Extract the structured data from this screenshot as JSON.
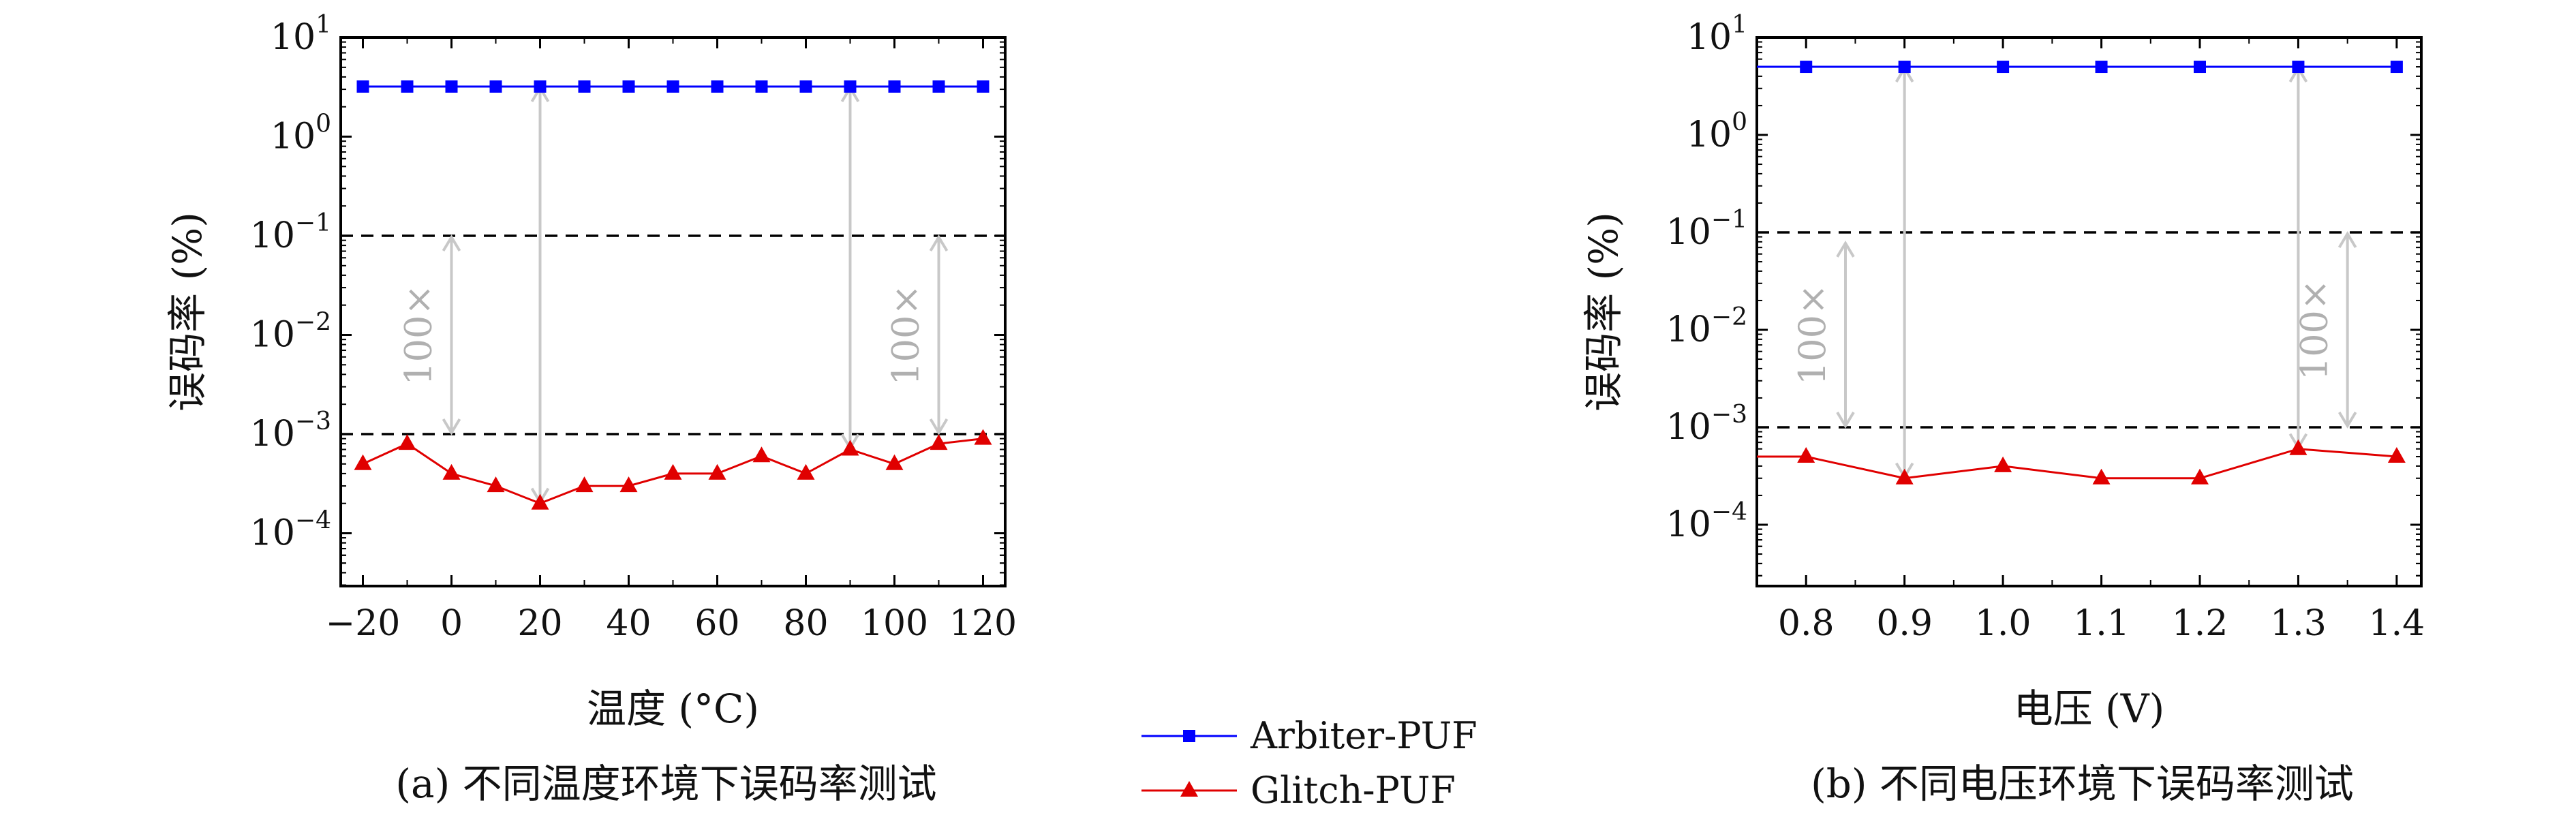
{
  "chart_data": [
    {
      "type": "line",
      "panel": "a",
      "caption": "(a) 不同温度环境下误码率测试",
      "xlabel": "温度 (°C)",
      "ylabel": "误码率 (%)",
      "yscale": "log",
      "xlim": [
        -25,
        125
      ],
      "ylim": [
        3e-05,
        10
      ],
      "xticks": [
        -20,
        0,
        20,
        40,
        60,
        80,
        100,
        120
      ],
      "xtick_labels": [
        "−20",
        "0",
        "20",
        "40",
        "60",
        "80",
        "100",
        "120"
      ],
      "yticks": [
        10,
        1,
        0.1,
        0.01,
        0.001,
        0.0001
      ],
      "ytick_labels": [
        {
          "base": "10",
          "exp": "1"
        },
        {
          "base": "10",
          "exp": "0"
        },
        {
          "base": "10",
          "exp": "−1"
        },
        {
          "base": "10",
          "exp": "−2"
        },
        {
          "base": "10",
          "exp": "−3"
        },
        {
          "base": "10",
          "exp": "−4"
        }
      ],
      "x": [
        -20,
        -10,
        0,
        10,
        20,
        30,
        40,
        50,
        60,
        70,
        80,
        90,
        100,
        110,
        120
      ],
      "series": [
        {
          "name": "Arbiter-PUF",
          "color": "#0000ff",
          "marker": "square",
          "values": [
            3.2,
            3.2,
            3.2,
            3.2,
            3.2,
            3.2,
            3.2,
            3.2,
            3.2,
            3.2,
            3.2,
            3.2,
            3.2,
            3.2,
            3.2
          ]
        },
        {
          "name": "Glitch-PUF",
          "color": "#e00000",
          "marker": "triangle",
          "values": [
            0.0005,
            0.0008,
            0.0004,
            0.0003,
            0.0002,
            0.0003,
            0.0003,
            0.0004,
            0.0004,
            0.0006,
            0.0004,
            0.0007,
            0.0005,
            0.0008,
            0.0009
          ]
        }
      ],
      "hlines": [
        0.1,
        0.001
      ],
      "arrows": [
        {
          "x": 0,
          "from": 0.1,
          "to": 0.001,
          "label": "100×"
        },
        {
          "x": 20,
          "from": 3.2,
          "to": 0.0002,
          "label": ""
        },
        {
          "x": 90,
          "from": 3.2,
          "to": 0.0007,
          "label": ""
        },
        {
          "x": 110,
          "from": 0.1,
          "to": 0.001,
          "label": "100×"
        }
      ]
    },
    {
      "type": "line",
      "panel": "b",
      "caption": "(b) 不同电压环境下误码率测试",
      "xlabel": "电压 (V)",
      "ylabel": "误码率 (%)",
      "yscale": "log",
      "xlim": [
        0.75,
        1.425
      ],
      "ylim": [
        2e-05,
        10
      ],
      "xticks": [
        0.8,
        0.9,
        1.0,
        1.1,
        1.2,
        1.3,
        1.4
      ],
      "xtick_labels": [
        "0.8",
        "0.9",
        "1.0",
        "1.1",
        "1.2",
        "1.3",
        "1.4"
      ],
      "yticks": [
        10,
        1,
        0.1,
        0.01,
        0.001,
        0.0001
      ],
      "ytick_labels": [
        {
          "base": "10",
          "exp": "1"
        },
        {
          "base": "10",
          "exp": "0"
        },
        {
          "base": "10",
          "exp": "−1"
        },
        {
          "base": "10",
          "exp": "−2"
        },
        {
          "base": "10",
          "exp": "−3"
        },
        {
          "base": "10",
          "exp": "−4"
        }
      ],
      "x": [
        0.75,
        0.8,
        0.9,
        1.0,
        1.1,
        1.2,
        1.3,
        1.4
      ],
      "series": [
        {
          "name": "Arbiter-PUF",
          "color": "#0000ff",
          "marker": "square",
          "values": [
            5,
            5,
            5,
            5,
            5,
            5,
            5,
            5
          ],
          "marker_from": 1
        },
        {
          "name": "Glitch-PUF",
          "color": "#e00000",
          "marker": "triangle",
          "values": [
            0.0005,
            0.0005,
            0.0003,
            0.0004,
            0.0003,
            0.0003,
            0.0006,
            0.0005
          ],
          "marker_from": 1
        }
      ],
      "hlines": [
        0.1,
        0.001
      ],
      "arrows": [
        {
          "x": 0.84,
          "from": 0.08,
          "to": 0.001,
          "label": "100×"
        },
        {
          "x": 0.9,
          "from": 5,
          "to": 0.0003,
          "label": ""
        },
        {
          "x": 1.3,
          "from": 5,
          "to": 0.0006,
          "label": ""
        },
        {
          "x": 1.35,
          "from": 0.1,
          "to": 0.001,
          "label": "100×"
        }
      ]
    }
  ],
  "legend": {
    "placement": "bottom-center",
    "entries": [
      {
        "label": "Arbiter-PUF",
        "color": "#0000ff",
        "marker": "square"
      },
      {
        "label": "Glitch-PUF",
        "color": "#e00000",
        "marker": "triangle"
      }
    ]
  }
}
